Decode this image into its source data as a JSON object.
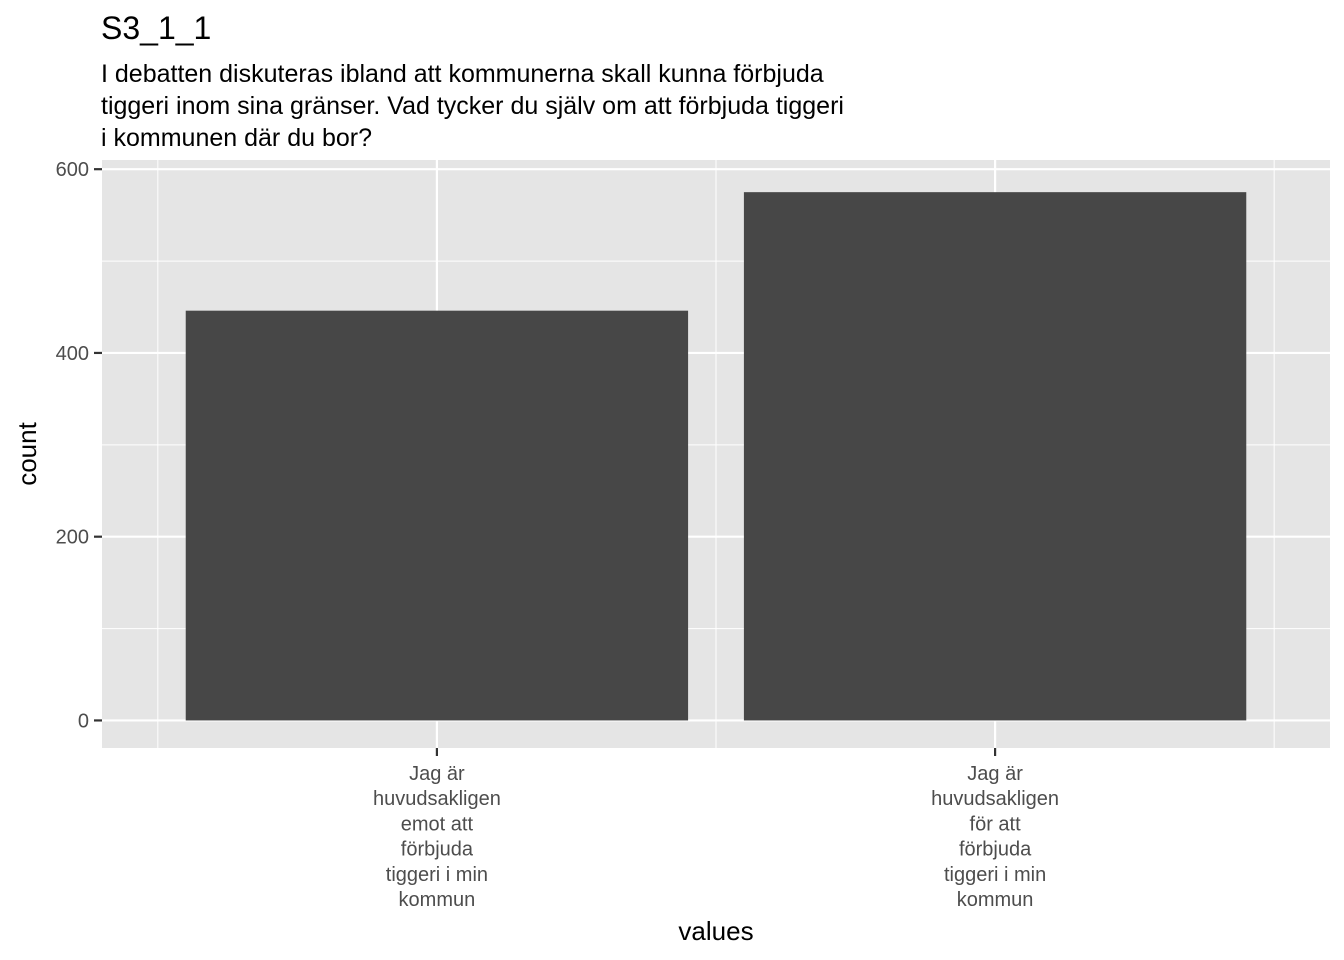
{
  "title": "S3_1_1",
  "subtitle_lines": [
    "I debatten diskuteras ibland att kommunerna skall kunna förbjuda",
    "tiggeri inom sina gränser. Vad tycker du själv om att förbjuda tiggeri",
    "i kommunen där du bor?"
  ],
  "chart_data": {
    "type": "bar",
    "categories": [
      [
        "Jag är",
        "huvudsakligen",
        "emot att",
        "förbjuda",
        "tiggeri i min",
        "kommun"
      ],
      [
        "Jag är",
        "huvudsakligen",
        "för att",
        "förbjuda",
        "tiggeri i min",
        "kommun"
      ]
    ],
    "values": [
      446,
      575
    ],
    "xlabel": "values",
    "ylabel": "count",
    "ylim": [
      -30,
      610
    ],
    "yticks": [
      0,
      200,
      400,
      600
    ],
    "grid": true,
    "colors": {
      "panel": "#e5e5e5",
      "grid": "#ffffff",
      "bar": "#474747",
      "tick": "#333333"
    }
  }
}
